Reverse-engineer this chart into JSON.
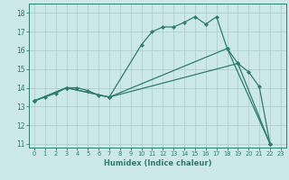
{
  "xlabel": "Humidex (Indice chaleur)",
  "background_color": "#cce8e8",
  "grid_color": "#aacccc",
  "line_color": "#2e7d6e",
  "xlim": [
    -0.5,
    23.5
  ],
  "ylim": [
    10.8,
    18.5
  ],
  "yticks": [
    11,
    12,
    13,
    14,
    15,
    16,
    17,
    18
  ],
  "xticks": [
    0,
    1,
    2,
    3,
    4,
    5,
    6,
    7,
    8,
    9,
    10,
    11,
    12,
    13,
    14,
    15,
    16,
    17,
    18,
    19,
    20,
    21,
    22,
    23
  ],
  "curve_x": [
    0,
    1,
    2,
    3,
    4,
    5,
    6,
    7,
    10,
    11,
    12,
    13,
    14,
    15,
    16,
    17,
    18,
    19,
    20,
    21,
    22
  ],
  "curve_y": [
    13.3,
    13.5,
    13.7,
    14.0,
    14.0,
    13.85,
    13.6,
    13.5,
    16.3,
    17.0,
    17.25,
    17.25,
    17.5,
    17.8,
    17.4,
    17.8,
    16.1,
    15.3,
    14.85,
    14.05,
    11.0
  ],
  "line_upper_x": [
    0,
    3,
    7,
    18,
    22
  ],
  "line_upper_y": [
    13.3,
    14.0,
    13.5,
    16.1,
    11.0
  ],
  "line_lower_x": [
    0,
    3,
    7,
    19,
    22
  ],
  "line_lower_y": [
    13.3,
    14.0,
    13.5,
    15.3,
    11.0
  ]
}
